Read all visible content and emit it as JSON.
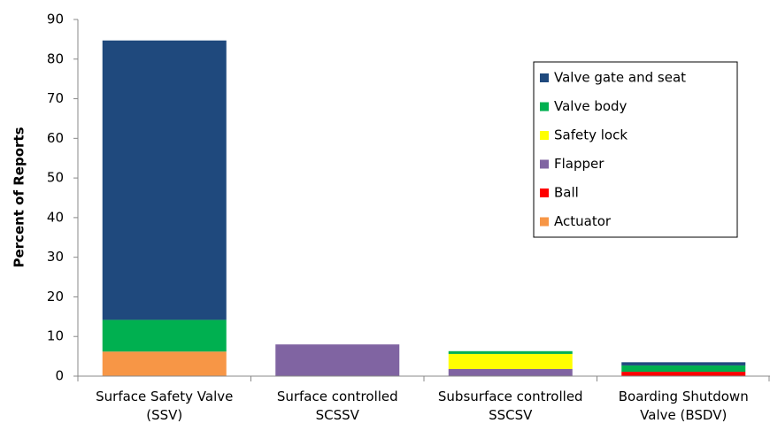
{
  "chart_data": {
    "type": "stacked_bar",
    "categories": [
      "Surface Safety Valve (SSV)",
      "Surface controlled SCSSV",
      "Subsurface controlled SSCSV",
      "Boarding Shutdown Valve (BSDV)"
    ],
    "y_label": "Percent of Reports",
    "ylim": [
      0,
      90
    ],
    "yticks": [
      0,
      10,
      20,
      30,
      40,
      50,
      60,
      70,
      80,
      90
    ],
    "legend": "upper right",
    "series": [
      {
        "name": "Valve gate and seat",
        "color": "#1f497d",
        "values": [
          70.5,
          0,
          0,
          0.8
        ]
      },
      {
        "name": "Valve body",
        "color": "#00b050",
        "values": [
          8,
          0,
          0.7,
          1.6
        ]
      },
      {
        "name": "Safety lock",
        "color": "#ffff00",
        "values": [
          0,
          0,
          3.8,
          0
        ]
      },
      {
        "name": "Flapper",
        "color": "#8064a2",
        "values": [
          0,
          8,
          1.8,
          0
        ]
      },
      {
        "name": "Ball",
        "color": "#ff0000",
        "values": [
          0,
          0,
          0,
          1.1
        ]
      },
      {
        "name": "Actuator",
        "color": "#f79646",
        "values": [
          6.2,
          0,
          0,
          0
        ]
      }
    ]
  }
}
